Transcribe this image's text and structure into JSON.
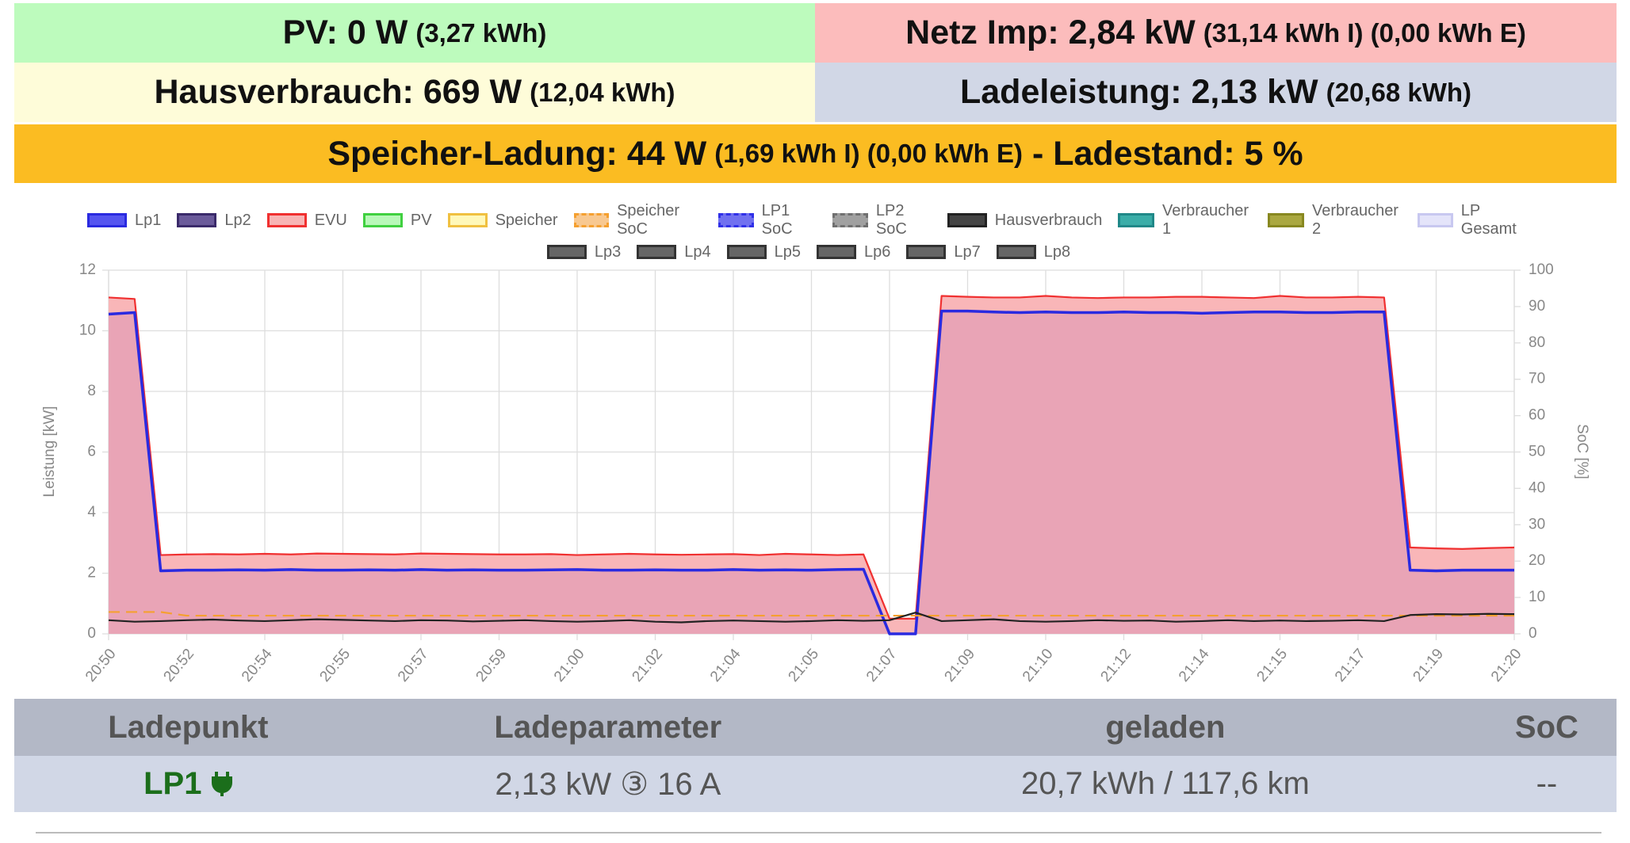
{
  "header": {
    "pv": {
      "main": "PV: 0 W",
      "detail": "(3,27 kWh)"
    },
    "grid": {
      "main": "Netz Imp: 2,84 kW",
      "detail": "(31,14 kWh I) (0,00 kWh E)"
    },
    "house": {
      "main": "Hausverbrauch: 669 W",
      "detail": "(12,04 kWh)"
    },
    "charging": {
      "main": "Ladeleistung: 2,13 kW",
      "detail": "(20,68 kWh)"
    },
    "battery": {
      "main": "Speicher-Ladung: 44 W",
      "detail": "(1,69 kWh I) (0,00 kWh E)",
      "soc": "- Ladestand: 5 %"
    }
  },
  "chart_data": {
    "type": "line",
    "y_label": "Leistung [kW]",
    "y2_label": "SoC [%]",
    "categories": [
      "20:50",
      null,
      null,
      "20:52",
      null,
      null,
      "20:54",
      null,
      null,
      "20:55",
      null,
      null,
      "20:57",
      null,
      null,
      "20:59",
      null,
      null,
      "21:00",
      null,
      null,
      "21:02",
      null,
      null,
      "21:04",
      null,
      null,
      "21:05",
      null,
      null,
      "21:07",
      null,
      null,
      "21:09",
      null,
      null,
      "21:10",
      null,
      null,
      "21:12",
      null,
      null,
      "21:14",
      null,
      null,
      "21:15",
      null,
      null,
      "21:17",
      null,
      null,
      "21:19",
      null,
      null,
      "21:20"
    ],
    "ylim": [
      0,
      12
    ],
    "yticks": [
      0,
      2,
      4,
      6,
      8,
      10,
      12
    ],
    "y2lim": [
      0,
      100
    ],
    "y2ticks": [
      0,
      10,
      20,
      30,
      40,
      50,
      60,
      70,
      80,
      90,
      100
    ],
    "grid": true,
    "series": [
      {
        "name": "Lp1",
        "color": "#2a2ae0",
        "swatch": "#5555f0",
        "fill": "rgba(120,40,170,0.12)",
        "values": [
          10.55,
          10.6,
          2.08,
          2.1,
          2.1,
          2.11,
          2.1,
          2.12,
          2.1,
          2.1,
          2.11,
          2.1,
          2.12,
          2.1,
          2.11,
          2.1,
          2.1,
          2.11,
          2.12,
          2.1,
          2.1,
          2.11,
          2.1,
          2.1,
          2.12,
          2.1,
          2.11,
          2.1,
          2.12,
          2.13,
          0,
          0,
          10.65,
          10.65,
          10.62,
          10.6,
          10.62,
          10.6,
          10.6,
          10.62,
          10.6,
          10.6,
          10.58,
          10.6,
          10.62,
          10.62,
          10.6,
          10.6,
          10.62,
          10.62,
          2.1,
          2.08,
          2.1,
          2.1,
          2.1
        ]
      },
      {
        "name": "Lp2",
        "color": "#3a2a6a",
        "swatch": "#6a5a9a"
      },
      {
        "name": "EVU",
        "color": "#f03030",
        "swatch": "#f8b4b4",
        "fill": "#f9b6b8",
        "values": [
          11.1,
          11.05,
          2.6,
          2.62,
          2.63,
          2.62,
          2.64,
          2.62,
          2.65,
          2.64,
          2.63,
          2.62,
          2.65,
          2.64,
          2.63,
          2.62,
          2.62,
          2.63,
          2.6,
          2.62,
          2.64,
          2.62,
          2.61,
          2.62,
          2.63,
          2.6,
          2.64,
          2.62,
          2.6,
          2.62,
          0.5,
          0.5,
          11.15,
          11.12,
          11.1,
          11.1,
          11.15,
          11.1,
          11.08,
          11.1,
          11.1,
          11.12,
          11.12,
          11.1,
          11.08,
          11.15,
          11.1,
          11.1,
          11.12,
          11.1,
          2.85,
          2.82,
          2.8,
          2.83,
          2.85
        ]
      },
      {
        "name": "PV",
        "color": "#40d040",
        "swatch": "#b8f8b8"
      },
      {
        "name": "Speicher",
        "color": "#f0c040",
        "swatch": "#fff8b8"
      },
      {
        "name": "Speicher SoC",
        "color": "#f5a030",
        "swatch": "#f8c890",
        "dash": true,
        "axis": "y2",
        "values": [
          6,
          6,
          6,
          5,
          5,
          5,
          5,
          5,
          5,
          5,
          5,
          5,
          5,
          5,
          5,
          5,
          5,
          5,
          5,
          5,
          5,
          5,
          5,
          5,
          5,
          5,
          5,
          5,
          5,
          5,
          5,
          5,
          5,
          5,
          5,
          5,
          5,
          5,
          5,
          5,
          5,
          5,
          5,
          5,
          5,
          5,
          5,
          5,
          5,
          5,
          5,
          5,
          5,
          5,
          5
        ]
      },
      {
        "name": "LP1 SoC",
        "color": "#3030e8",
        "swatch": "#7070f0",
        "dash": true
      },
      {
        "name": "LP2 SoC",
        "color": "#707070",
        "swatch": "#a0a0a0",
        "dash": true
      },
      {
        "name": "Hausverbrauch",
        "color": "#222222",
        "swatch": "#444444",
        "values": [
          0.45,
          0.4,
          0.42,
          0.45,
          0.47,
          0.44,
          0.42,
          0.45,
          0.48,
          0.46,
          0.44,
          0.42,
          0.45,
          0.44,
          0.41,
          0.43,
          0.45,
          0.42,
          0.4,
          0.42,
          0.45,
          0.4,
          0.38,
          0.42,
          0.44,
          0.42,
          0.4,
          0.42,
          0.45,
          0.43,
          0.45,
          0.7,
          0.42,
          0.45,
          0.48,
          0.42,
          0.4,
          0.42,
          0.45,
          0.43,
          0.44,
          0.4,
          0.42,
          0.45,
          0.42,
          0.44,
          0.42,
          0.43,
          0.45,
          0.42,
          0.62,
          0.65,
          0.64,
          0.66,
          0.65
        ]
      },
      {
        "name": "Verbraucher 1",
        "color": "#208888",
        "swatch": "#3aada8"
      },
      {
        "name": "Verbraucher 2",
        "color": "#888820",
        "swatch": "#aaa840"
      },
      {
        "name": "LP Gesamt",
        "color": "#c8c8f0",
        "swatch": "#e4e4fa"
      },
      {
        "name": "Lp3",
        "color": "#333333",
        "swatch": "#666666"
      },
      {
        "name": "Lp4",
        "color": "#333333",
        "swatch": "#666666"
      },
      {
        "name": "Lp5",
        "color": "#333333",
        "swatch": "#666666"
      },
      {
        "name": "Lp6",
        "color": "#333333",
        "swatch": "#666666"
      },
      {
        "name": "Lp7",
        "color": "#333333",
        "swatch": "#666666"
      },
      {
        "name": "Lp8",
        "color": "#333333",
        "swatch": "#666666"
      }
    ]
  },
  "table": {
    "headers": [
      "Ladepunkt",
      "Ladeparameter",
      "geladen",
      "SoC"
    ],
    "rows": [
      [
        "LP1",
        "2,13 kW ③ 16 A",
        "20,7 kWh / 117,6 km",
        "--"
      ]
    ]
  }
}
